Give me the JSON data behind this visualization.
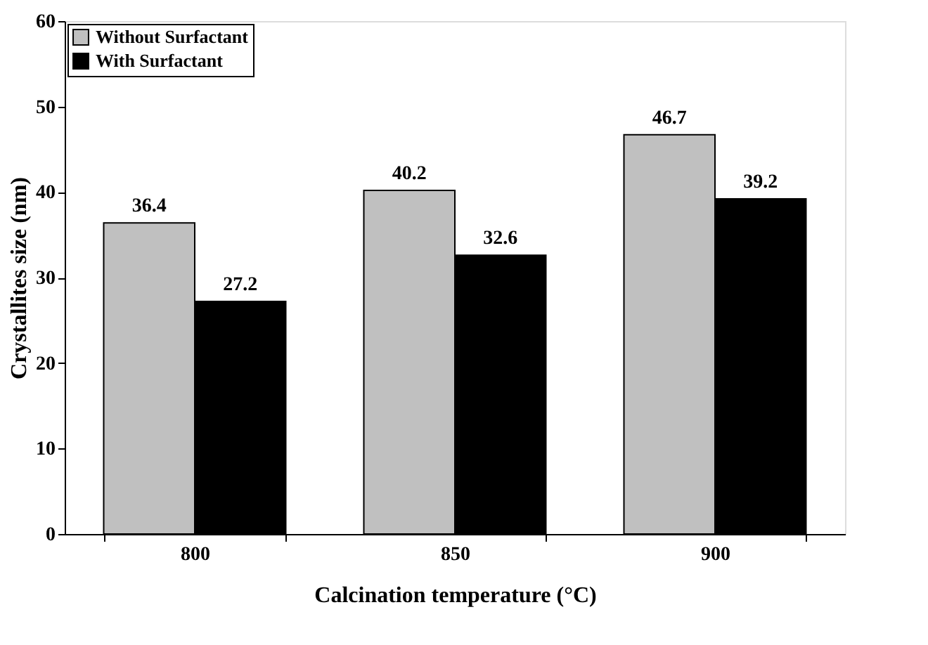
{
  "chart_data": {
    "type": "bar",
    "xlabel": "Calcination temperature (°C)",
    "ylabel": "Crystallites size (nm)",
    "categories": [
      "800",
      "850",
      "900"
    ],
    "series": [
      {
        "name": "Without Surfactant",
        "color": "#c0c0c0",
        "values": [
          36.4,
          40.2,
          46.7
        ]
      },
      {
        "name": "With Surfactant",
        "color": "#000000",
        "values": [
          27.2,
          32.6,
          39.2
        ]
      }
    ],
    "ylim": [
      0,
      60
    ],
    "yticks": [
      0,
      10,
      20,
      30,
      40,
      50,
      60
    ],
    "grid": false,
    "legend": "top left",
    "data_labels": true
  }
}
